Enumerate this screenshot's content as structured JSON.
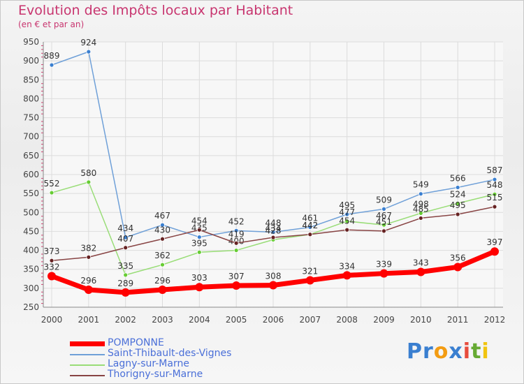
{
  "chart_data": {
    "type": "line",
    "title": "Evolution des Impôts locaux par Habitant",
    "subtitle": "(en € et par an)",
    "x": [
      "2000",
      "2001",
      "2002",
      "2003",
      "2004",
      "2005",
      "2006",
      "2007",
      "2008",
      "2009",
      "2010",
      "2011",
      "2012"
    ],
    "ylim": [
      250,
      950
    ],
    "yticks": [
      250,
      300,
      350,
      400,
      450,
      500,
      550,
      600,
      650,
      700,
      750,
      800,
      850,
      900,
      950
    ],
    "grid": true,
    "legend_position": "bottom-left",
    "series": [
      {
        "name": "POMPONNE",
        "color": "#ff0000",
        "emphasis": true,
        "values": [
          332,
          296,
          289,
          296,
          303,
          307,
          308,
          321,
          334,
          339,
          343,
          356,
          397
        ]
      },
      {
        "name": "Saint-Thibault-des-Vignes",
        "color": "#6fa0d8",
        "marker": "#3a7fd0",
        "emphasis": false,
        "values": [
          889,
          924,
          434,
          467,
          435,
          452,
          448,
          461,
          495,
          509,
          549,
          566,
          587
        ]
      },
      {
        "name": "Lagny-sur-Marne",
        "color": "#99dd77",
        "marker": "#66cc33",
        "emphasis": false,
        "values": [
          552,
          580,
          335,
          362,
          395,
          400,
          428,
          442,
          477,
          467,
          498,
          524,
          548
        ]
      },
      {
        "name": "Thorigny-sur-Marne",
        "color": "#884444",
        "marker": "#662222",
        "emphasis": false,
        "values": [
          373,
          382,
          407,
          430,
          454,
          419,
          434,
          442,
          454,
          451,
          485,
          495,
          515
        ]
      }
    ]
  },
  "logo": {
    "text": "Proxiti",
    "letters": [
      "P",
      "r",
      "o",
      "x",
      "i",
      "t",
      "i"
    ],
    "colors": [
      "#3a7fd0",
      "#3a7fd0",
      "#f39c12",
      "#3a7fd0",
      "#e74c3c",
      "#66aa33",
      "#f1c40f"
    ]
  }
}
